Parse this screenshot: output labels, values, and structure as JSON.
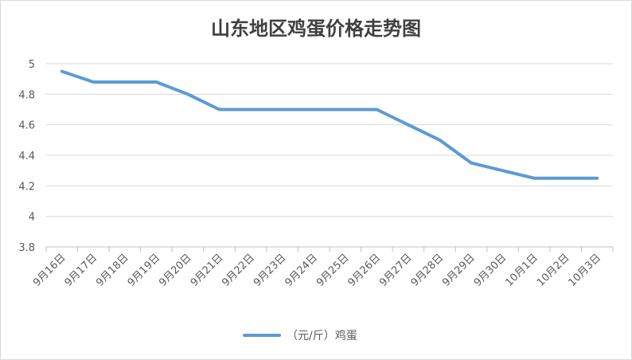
{
  "chart_data": {
    "type": "line",
    "title": "山东地区鸡蛋价格走势图",
    "categories": [
      "9月16日",
      "9月17日",
      "9月18日",
      "9月19日",
      "9月20日",
      "9月21日",
      "9月22日",
      "9月23日",
      "9月24日",
      "9月25日",
      "9月26日",
      "9月27日",
      "9月28日",
      "9月29日",
      "9月30日",
      "10月1日",
      "10月2日",
      "10月3日"
    ],
    "series": [
      {
        "name": "（元/斤）鸡蛋",
        "values": [
          4.95,
          4.88,
          4.88,
          4.88,
          4.8,
          4.7,
          4.7,
          4.7,
          4.7,
          4.7,
          4.7,
          4.6,
          4.5,
          4.35,
          4.3,
          4.25,
          4.25,
          4.25
        ],
        "color": "#5b9bd5"
      }
    ],
    "ylim": [
      3.8,
      5
    ],
    "yticks": [
      "5",
      "4.8",
      "4.6",
      "4.4",
      "4.2",
      "4",
      "3.8"
    ],
    "ytick_values": [
      5,
      4.8,
      4.6,
      4.4,
      4.2,
      4,
      3.8
    ],
    "grid": "horizontal",
    "legend_position": "bottom",
    "grid_color": "#d9d9d9",
    "axis_color": "#bfbfbf"
  }
}
